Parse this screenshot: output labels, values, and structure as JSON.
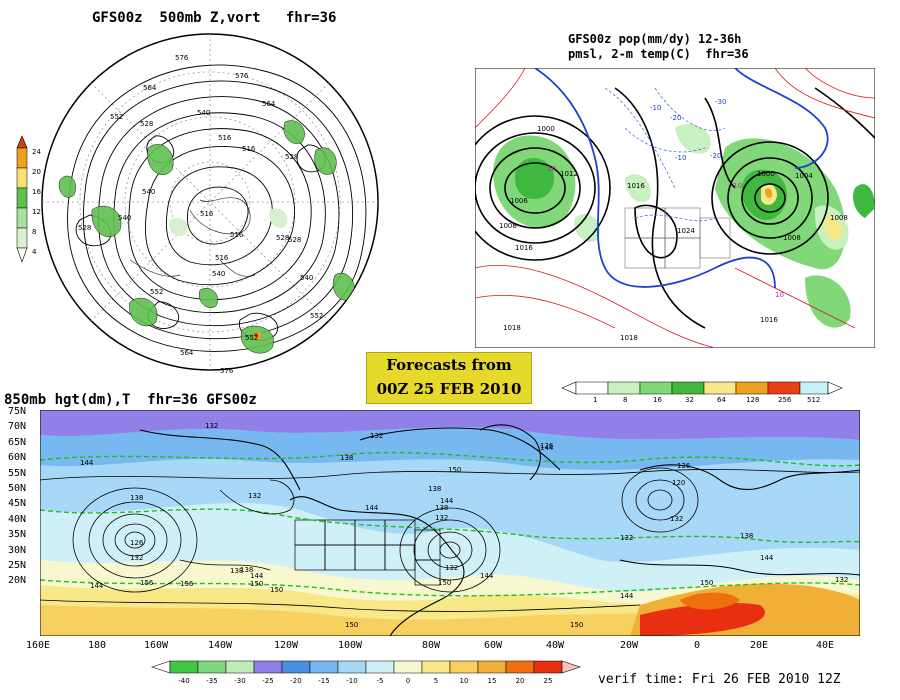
{
  "top_left": {
    "title": "GFS00z  500mb Z,vort   fhr=36",
    "legend_values": [
      "24",
      "20",
      "16",
      "12",
      "8",
      "4"
    ],
    "legend_colors": [
      "#d43c18",
      "#f0a020",
      "#f5e070",
      "#60c050",
      "#a8e0a0",
      "#d8f0d0"
    ],
    "contour_labels": [
      "576",
      "576",
      "564",
      "564",
      "552",
      "540",
      "528",
      "516",
      "516",
      "528",
      "540",
      "540",
      "528",
      "516",
      "516",
      "528",
      "540",
      "552",
      "564",
      "576",
      "552",
      "540",
      "528",
      "516",
      "552"
    ]
  },
  "top_right": {
    "title_line1": "GFS00z pop(mm/dy) 12-36h",
    "title_line2": "pmsl, 2-m temp(C)  fhr=36",
    "pressure_labels": [
      "1000",
      "1006",
      "1008",
      "1012",
      "1016",
      "1018",
      "1016",
      "1024",
      "1000",
      "1004",
      "1008",
      "1016",
      "1018",
      "1008"
    ],
    "temp_labels": [
      "-10",
      "-20",
      "-30",
      "-10",
      "-20",
      "10",
      "10",
      "10"
    ],
    "scale_values": [
      "1",
      "8",
      "16",
      "32",
      "64",
      "128",
      "256",
      "512"
    ],
    "scale_colors": [
      "#ffffff",
      "#c8f0c0",
      "#80d878",
      "#40b840",
      "#f8e888",
      "#f0a020",
      "#e84010",
      "#c8f0f8"
    ]
  },
  "forecast": {
    "line1": "Forecasts from",
    "line2": "00Z 25 FEB 2010"
  },
  "bottom": {
    "title": "850mb hgt(dm),T  fhr=36 GFS00z",
    "lat_labels": [
      "75N",
      "70N",
      "65N",
      "60N",
      "55N",
      "50N",
      "45N",
      "40N",
      "35N",
      "30N",
      "25N",
      "20N"
    ],
    "lon_labels": [
      "160E",
      "180",
      "160W",
      "140W",
      "120W",
      "100W",
      "80W",
      "60W",
      "40W",
      "20W",
      "0",
      "20E",
      "40E"
    ],
    "contour_labels": [
      "132",
      "138",
      "144",
      "126",
      "132",
      "138",
      "144",
      "150",
      "156",
      "132",
      "138",
      "144",
      "150",
      "138",
      "132",
      "150",
      "156",
      "144",
      "150",
      "132",
      "138",
      "144",
      "120",
      "126",
      "132",
      "138",
      "144",
      "150",
      "126",
      "132",
      "144",
      "138",
      "144",
      "150",
      "132",
      "144",
      "150",
      "132"
    ],
    "scale_values": [
      "-40",
      "-35",
      "-30",
      "-25",
      "-20",
      "-15",
      "-10",
      "-5",
      "0",
      "5",
      "10",
      "15",
      "20",
      "25"
    ],
    "scale_colors": [
      "#40c840",
      "#80d880",
      "#c0ecb8",
      "#9080e8",
      "#4890e0",
      "#78b8f0",
      "#a8d8f8",
      "#d0f0f8",
      "#f8f8d0",
      "#f8e888",
      "#f8d060",
      "#f0b038",
      "#f07010",
      "#e83010",
      "#f8c0c0"
    ],
    "verif": "verif time: Fri 26 FEB 2010 12Z"
  }
}
